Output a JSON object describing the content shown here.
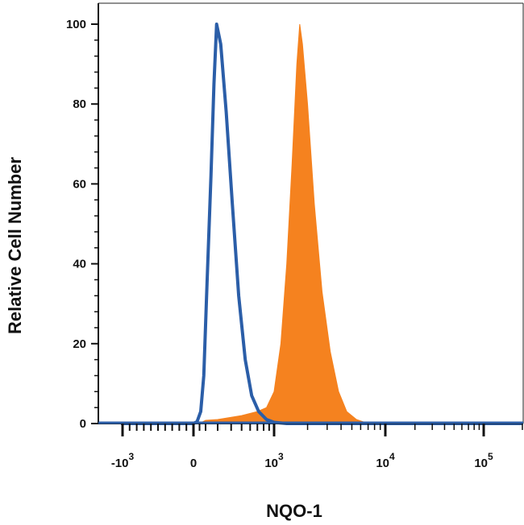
{
  "chart_data": {
    "type": "area",
    "xlabel": "NQO-1",
    "ylabel": "Relative Cell Number",
    "x_scale": "biexponential",
    "xlim": [
      -1500,
      200000
    ],
    "ylim": [
      0,
      105
    ],
    "y_ticks": [
      "0",
      "20",
      "40",
      "60",
      "80",
      "100"
    ],
    "x_ticks": [
      {
        "base": "-10",
        "exp": "3",
        "value": -1000
      },
      {
        "base": "0",
        "exp": "",
        "value": 0
      },
      {
        "base": "10",
        "exp": "3",
        "value": 1000
      },
      {
        "base": "10",
        "exp": "4",
        "value": 10000
      },
      {
        "base": "10",
        "exp": "5",
        "value": 100000
      }
    ],
    "series": [
      {
        "color": "#2b5ea8",
        "style": "line",
        "points": [
          [
            -1500,
            0
          ],
          [
            0,
            0
          ],
          [
            60,
            0.5
          ],
          [
            120,
            3
          ],
          [
            170,
            12
          ],
          [
            210,
            35
          ],
          [
            240,
            62
          ],
          [
            265,
            85
          ],
          [
            290,
            100
          ],
          [
            320,
            95
          ],
          [
            360,
            78
          ],
          [
            410,
            55
          ],
          [
            470,
            32
          ],
          [
            540,
            16
          ],
          [
            620,
            7
          ],
          [
            720,
            3
          ],
          [
            850,
            1
          ],
          [
            1000,
            0.3
          ],
          [
            1300,
            0
          ],
          [
            200000,
            0
          ]
        ]
      },
      {
        "color": "#f5821f",
        "style": "filled",
        "points": [
          [
            -1500,
            0
          ],
          [
            100,
            0
          ],
          [
            200,
            0.8
          ],
          [
            300,
            1
          ],
          [
            500,
            2
          ],
          [
            700,
            3
          ],
          [
            850,
            4
          ],
          [
            1000,
            8
          ],
          [
            1150,
            20
          ],
          [
            1300,
            40
          ],
          [
            1450,
            65
          ],
          [
            1600,
            90
          ],
          [
            1700,
            100
          ],
          [
            1800,
            95
          ],
          [
            2000,
            80
          ],
          [
            2300,
            55
          ],
          [
            2700,
            33
          ],
          [
            3200,
            18
          ],
          [
            3800,
            8
          ],
          [
            4500,
            3
          ],
          [
            5500,
            1
          ],
          [
            7000,
            0
          ],
          [
            200000,
            0
          ]
        ]
      }
    ]
  }
}
